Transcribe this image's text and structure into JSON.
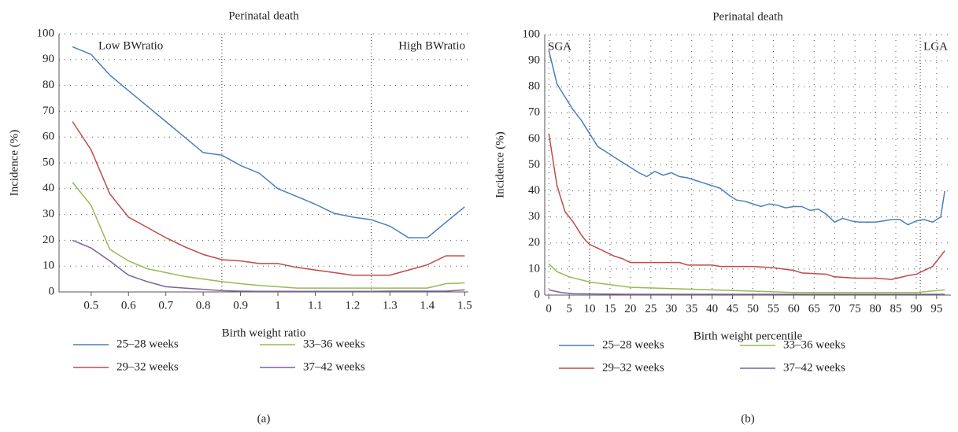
{
  "chart_data": [
    {
      "type": "line",
      "title": "Perinatal death",
      "caption": "(a)",
      "xlabel": "Birth weight ratio",
      "ylabel": "Incidence (%)",
      "annotations": [
        "Low BWratio",
        "High BWratio"
      ],
      "vlines": [
        0.85,
        1.25
      ],
      "xlim": [
        0.414,
        1.51
      ],
      "xticks": [
        0.5,
        0.6,
        0.7,
        0.8,
        0.9,
        1,
        1.1,
        1.2,
        1.3,
        1.4,
        1.5
      ],
      "ylim": [
        0,
        100
      ],
      "yticks": [
        0,
        10,
        20,
        30,
        40,
        50,
        60,
        70,
        80,
        90,
        100
      ],
      "grid": true,
      "x": [
        0.45,
        0.5,
        0.55,
        0.6,
        0.65,
        0.7,
        0.75,
        0.8,
        0.85,
        0.9,
        0.95,
        1.0,
        1.05,
        1.1,
        1.15,
        1.2,
        1.25,
        1.3,
        1.35,
        1.4,
        1.45,
        1.5
      ],
      "series": [
        {
          "name": "25–28 weeks",
          "color": "#4a7ebb",
          "values": [
            95,
            92,
            84,
            78,
            72,
            66,
            60,
            54,
            53,
            49,
            46,
            40,
            37,
            34,
            30.5,
            29,
            28,
            25.5,
            21,
            21,
            27,
            33
          ]
        },
        {
          "name": "29–32 weeks",
          "color": "#be4b48",
          "values": [
            66,
            55,
            38,
            29,
            25,
            21,
            17.5,
            14.5,
            12.5,
            12,
            11,
            11,
            9.5,
            8.5,
            7.5,
            6.5,
            6.5,
            6.5,
            8.5,
            10.5,
            14,
            14
          ]
        },
        {
          "name": "33–36 weeks",
          "color": "#98b954",
          "values": [
            42.5,
            33.5,
            16.5,
            12,
            9,
            7.5,
            6,
            5,
            4,
            3.2,
            2.5,
            2,
            1.5,
            1.5,
            1.5,
            1.5,
            1.5,
            1.5,
            1.5,
            1.5,
            3.2,
            3.5
          ]
        },
        {
          "name": "37–42 weeks",
          "color": "#7d60a0",
          "values": [
            20,
            17,
            12,
            6.5,
            4,
            2,
            1.5,
            1,
            0.5,
            0.3,
            0.2,
            0.2,
            0.2,
            0.2,
            0.2,
            0.2,
            0.2,
            0.3,
            0.3,
            0.3,
            0.3,
            0.8
          ]
        }
      ]
    },
    {
      "type": "line",
      "title": "Perinatal death",
      "caption": "(b)",
      "xlabel": "Birth weight percentile",
      "ylabel": "Incidence (%)",
      "annotations": [
        "SGA",
        "LGA"
      ],
      "vlines": [
        10,
        91
      ],
      "xlim": [
        -1,
        98.5
      ],
      "xticks": [
        0,
        5,
        10,
        15,
        20,
        25,
        30,
        35,
        40,
        45,
        50,
        55,
        60,
        65,
        70,
        75,
        80,
        85,
        90,
        95
      ],
      "ylim": [
        0,
        100
      ],
      "yticks": [
        0,
        10,
        20,
        30,
        40,
        50,
        60,
        70,
        80,
        90,
        100
      ],
      "grid": true,
      "series": [
        {
          "name": "25–28 weeks",
          "color": "#4a7ebb",
          "x": [
            0,
            2,
            4,
            6,
            8,
            10,
            12,
            14,
            16,
            18,
            20,
            22,
            24,
            26,
            28,
            30,
            32,
            34,
            36,
            38,
            40,
            42,
            44,
            46,
            48,
            50,
            52,
            54,
            56,
            58,
            60,
            62,
            64,
            66,
            68,
            70,
            72,
            74,
            76,
            78,
            80,
            82,
            84,
            86,
            88,
            90,
            92,
            94,
            96,
            97
          ],
          "values": [
            94,
            81,
            76,
            71,
            67,
            62,
            57,
            55,
            53,
            51,
            49,
            47,
            45.5,
            47.5,
            46,
            47,
            45.5,
            45,
            44,
            43,
            42,
            41,
            38.5,
            36.5,
            36,
            35,
            34,
            35,
            34.5,
            33.5,
            34,
            34,
            32.5,
            33,
            31,
            28,
            29.5,
            28.5,
            28,
            28,
            28,
            28.5,
            29,
            29,
            27,
            28.5,
            29,
            28,
            30,
            40
          ]
        },
        {
          "name": "29–32 weeks",
          "color": "#be4b48",
          "x": [
            0,
            2,
            4,
            6,
            8,
            9,
            10,
            12,
            14,
            16,
            18,
            20,
            25,
            30,
            32,
            34,
            40,
            42,
            50,
            55,
            60,
            62,
            68,
            70,
            75,
            80,
            84,
            88,
            90,
            94,
            97
          ],
          "values": [
            62,
            42,
            32,
            28,
            23,
            21,
            19.5,
            18,
            16.5,
            15,
            14,
            12.5,
            12.5,
            12.5,
            12.5,
            11.5,
            11.5,
            11,
            11,
            10.5,
            9.5,
            8.5,
            8,
            7,
            6.5,
            6.5,
            6,
            7.5,
            8,
            11,
            17
          ]
        },
        {
          "name": "33–36 weeks",
          "color": "#98b954",
          "x": [
            0,
            2,
            5,
            10,
            15,
            20,
            30,
            40,
            50,
            60,
            70,
            80,
            90,
            97
          ],
          "values": [
            12,
            9,
            7,
            5,
            4,
            3,
            2.5,
            2,
            1.5,
            1,
            1,
            1,
            1,
            2
          ]
        },
        {
          "name": "37–42 weeks",
          "color": "#7d60a0",
          "x": [
            0,
            3,
            6,
            20,
            97
          ],
          "values": [
            2,
            1,
            0.5,
            0.3,
            0.3
          ]
        }
      ]
    }
  ]
}
